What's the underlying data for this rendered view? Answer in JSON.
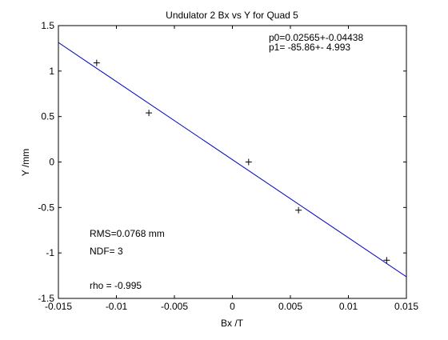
{
  "chart_data": {
    "type": "scatter",
    "title": "Undulator 2 Bx vs Y for Quad 5",
    "xlabel": "Bx /T",
    "ylabel": "Y /mm",
    "xlim": [
      -0.015,
      0.015
    ],
    "ylim": [
      -1.5,
      1.5
    ],
    "xticks": [
      -0.015,
      -0.01,
      -0.005,
      0,
      0.005,
      0.01,
      0.015
    ],
    "xtick_labels": [
      "-0.015",
      "-0.01",
      "-0.005",
      "0",
      "0.005",
      "0.01",
      "0.015"
    ],
    "yticks": [
      -1.5,
      -1,
      -0.5,
      0,
      0.5,
      1,
      1.5
    ],
    "ytick_labels": [
      "-1.5",
      "-1",
      "-0.5",
      "0",
      "0.5",
      "1",
      "1.5"
    ],
    "grid": false,
    "points": [
      {
        "x": -0.0117,
        "y": 1.09
      },
      {
        "x": -0.0072,
        "y": 0.54
      },
      {
        "x": 0.0014,
        "y": 0.0
      },
      {
        "x": 0.0057,
        "y": -0.53
      },
      {
        "x": 0.0133,
        "y": -1.08
      }
    ],
    "fit": {
      "p0": 0.02565,
      "p1": -85.86,
      "color": "#0000cc"
    },
    "annotations": {
      "p0_text": "p0=0.02565+-0.04438",
      "p1_text": "p1= -85.86+- 4.993",
      "rms_text": "RMS=0.0768 mm",
      "ndf_text": "NDF=    3",
      "rho_text": "rho    = -0.995"
    }
  }
}
